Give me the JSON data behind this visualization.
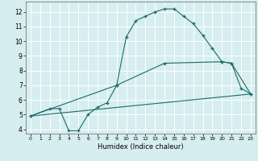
{
  "xlabel": "Humidex (Indice chaleur)",
  "bg_color": "#d6eef0",
  "grid_color": "#ffffff",
  "line_color": "#1a6b6b",
  "xlim": [
    -0.5,
    23.5
  ],
  "ylim": [
    3.7,
    12.7
  ],
  "xtick_labels": [
    "0",
    "1",
    "2",
    "3",
    "4",
    "5",
    "6",
    "7",
    "8",
    "9",
    "10",
    "11",
    "12",
    "13",
    "14",
    "15",
    "16",
    "17",
    "18",
    "19",
    "20",
    "21",
    "22",
    "23"
  ],
  "ytick_labels": [
    "4",
    "5",
    "6",
    "7",
    "8",
    "9",
    "10",
    "11",
    "12"
  ],
  "ytick_vals": [
    4,
    5,
    6,
    7,
    8,
    9,
    10,
    11,
    12
  ],
  "curve1_x": [
    0,
    2,
    3,
    4,
    5,
    6,
    7,
    8,
    9,
    10,
    11,
    12,
    13,
    14,
    15,
    16,
    17,
    18,
    19,
    20,
    21,
    22,
    23
  ],
  "curve1_y": [
    4.9,
    5.4,
    5.4,
    3.9,
    3.9,
    5.0,
    5.5,
    5.8,
    7.0,
    10.3,
    11.4,
    11.7,
    12.0,
    12.2,
    12.2,
    11.7,
    11.2,
    10.4,
    9.5,
    8.6,
    8.5,
    6.8,
    6.4
  ],
  "curve2_x": [
    0,
    23
  ],
  "curve2_y": [
    4.9,
    6.4
  ],
  "curve3_x": [
    0,
    9,
    14,
    20,
    21,
    23
  ],
  "curve3_y": [
    4.9,
    7.0,
    8.5,
    8.6,
    8.5,
    6.4
  ]
}
